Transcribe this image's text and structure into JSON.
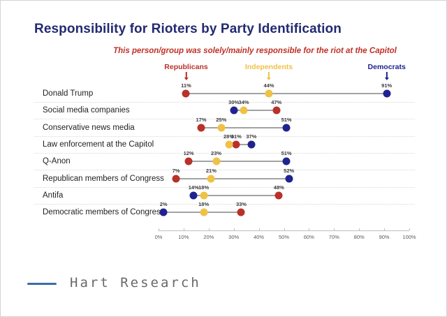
{
  "title": "Responsibility for Rioters by Party Identification",
  "subtitle": "This person/group was solely/mainly responsible for the riot at the Capitol",
  "footer": {
    "brand": "Hart Research",
    "accent_color": "#3c6ca8",
    "text_color": "#696969"
  },
  "colors": {
    "title_text": "#232a72",
    "subtitle_text": "#bf3127",
    "republicans": "#b93129",
    "independents": "#efc145",
    "democrats": "#20238f",
    "connector": "#a3a3a3",
    "separator": "#d8d8d8",
    "axis": "#bfbfbf",
    "axis_label_text": "#595959",
    "value_label_text": "#3a3a3a",
    "row_label_text": "#1f1f1f"
  },
  "chart_data": {
    "type": "scatter",
    "subtype": "dumbbell-dot-plot",
    "title": "Responsibility for Rioters by Party Identification",
    "subtitle": "This person/group was solely/mainly responsible for the riot at the Capitol",
    "categories": [
      "Donald Trump",
      "Social media companies",
      "Conservative news media",
      "Law enforcement at the Capitol",
      "Q-Anon",
      "Republican members of Congress",
      "Antifa",
      "Democratic members of Congress"
    ],
    "series": [
      {
        "name": "Republicans",
        "color": "#b93129",
        "values": [
          11,
          47,
          17,
          31,
          12,
          7,
          48,
          33
        ]
      },
      {
        "name": "Independents",
        "color": "#efc145",
        "values": [
          44,
          34,
          25,
          28,
          23,
          21,
          18,
          18
        ]
      },
      {
        "name": "Democrats",
        "color": "#20238f",
        "values": [
          91,
          30,
          51,
          37,
          51,
          52,
          14,
          2
        ]
      }
    ],
    "value_suffix": "%",
    "xlim": [
      0,
      100
    ],
    "x_ticks": [
      "0%",
      "10%",
      "20%",
      "30%",
      "40%",
      "50%",
      "60%",
      "70%",
      "80%",
      "90%",
      "100%"
    ],
    "legend": [
      {
        "label": "Republicans",
        "color": "#b93129",
        "anchor_value": 11
      },
      {
        "label": "Independents",
        "color": "#efc145",
        "anchor_value": 44
      },
      {
        "label": "Democrats",
        "color": "#20238f",
        "anchor_value": 91
      }
    ],
    "legend_position": "top",
    "grid": "dotted horizontal separators between category rows"
  }
}
